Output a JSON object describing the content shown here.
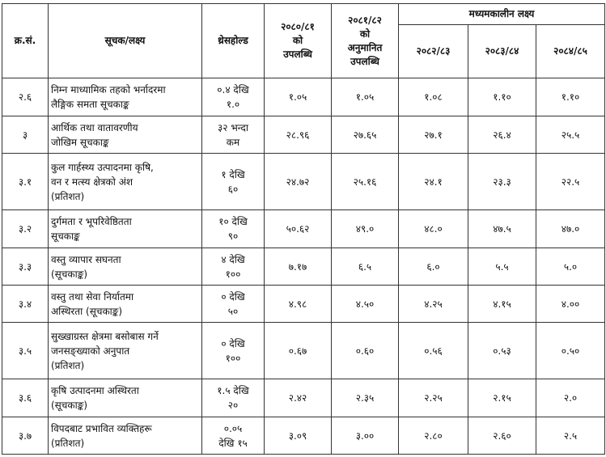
{
  "headers": {
    "sn": "क्र.सं.",
    "indicator": "सूचक/लक्ष्य",
    "threshold": "थ्रेसहोल्ड",
    "achieved_8081": [
      "२०८०/८१",
      "को",
      "उपलब्धि"
    ],
    "estimated_8182": [
      "२०८१/८२",
      "को",
      "अनुमानित",
      "उपलब्धि"
    ],
    "midterm": "मध्यमकालीन लक्ष्य",
    "y1": "२०८२/८३",
    "y2": "२०८३/८४",
    "y3": "२०८४/८५"
  },
  "rows": [
    {
      "sn": "२.६",
      "ind": [
        "निम्न माध्यामिक तहको भर्नादरमा",
        "लैङ्गिक समता सूचकाङ्क"
      ],
      "th": [
        "०.४ देखि",
        "१.०"
      ],
      "a": "१.०५",
      "b": "१.०५",
      "c": "१.०८",
      "d": "१.१०",
      "e": "१.१०"
    },
    {
      "sn": "३",
      "ind": [
        "आर्थिक तथा वातावरणीय",
        "जोखिम सूचकाङ्क"
      ],
      "th": [
        "३२ भन्दा",
        "कम"
      ],
      "a": "२८.९६",
      "b": "२७.६५",
      "c": "२७.१",
      "d": "२६.४",
      "e": "२५.५"
    },
    {
      "sn": "३.१",
      "ind": [
        "कुल गार्हस्थ्य उत्पादनमा कृषि,",
        "वन र मत्स्य क्षेत्रको अंश",
        "(प्रतिशत)"
      ],
      "th": [
        "१ देखि",
        "६०"
      ],
      "a": "२४.७२",
      "b": "२५.१६",
      "c": "२४.१",
      "d": "२३.३",
      "e": "२२.५"
    },
    {
      "sn": "३.२",
      "ind": [
        "दुर्गमता र भूपरिवेष्ठितता",
        "सूचकाङ्क"
      ],
      "th": [
        "१० देखि",
        "९०"
      ],
      "a": "५०.६२",
      "b": "४९.०",
      "c": "४८.०",
      "d": "४७.५",
      "e": "४७.०"
    },
    {
      "sn": "३.३",
      "ind": [
        "वस्तु व्यापार सघनता",
        "(सूचकाङ्क)"
      ],
      "th": [
        "४ देखि",
        "१००"
      ],
      "a": "७.१७",
      "b": "६.५",
      "c": "६.०",
      "d": "५.५",
      "e": "५.०"
    },
    {
      "sn": "३.४",
      "ind": [
        "वस्तु तथा सेवा निर्यातमा",
        "अस्थिरता (सूचकाङ्क)"
      ],
      "th": [
        "० देखि",
        "५०"
      ],
      "a": "४.९८",
      "b": "४.५०",
      "c": "४.२५",
      "d": "४.१५",
      "e": "४.००"
    },
    {
      "sn": "३.५",
      "ind": [
        "सुख्खाग्रस्त क्षेत्रमा बसोबास गर्ने",
        "जनसङ्ख्याको अनुपात",
        "(प्रतिशत)"
      ],
      "th": [
        "० देखि",
        "१००"
      ],
      "a": "०.६७",
      "b": "०.६०",
      "c": "०.५६",
      "d": "०.५३",
      "e": "०.५०"
    },
    {
      "sn": "३.६",
      "ind": [
        "कृषि उत्पादनमा अस्थिरता",
        "(सूचकाङ्क)"
      ],
      "th": [
        "१.५ देखि",
        "२०"
      ],
      "a": "२.४२",
      "b": "२.३५",
      "c": "२.२५",
      "d": "२.१५",
      "e": "२.०"
    },
    {
      "sn": "३.७",
      "ind": [
        "विपदबाट प्रभावित व्यक्तिहरू",
        "(प्रतिशत)"
      ],
      "th": [
        "०.०५",
        "देखि १५"
      ],
      "a": "३.०९",
      "b": "३.००",
      "c": "२.८०",
      "d": "२.६०",
      "e": "२.५"
    }
  ]
}
